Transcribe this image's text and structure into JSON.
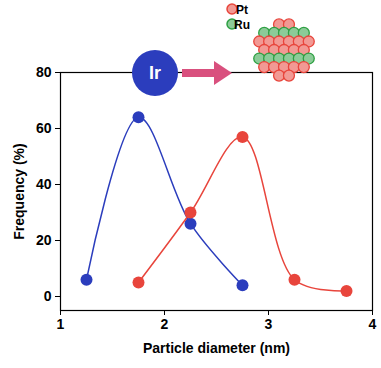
{
  "chart_data": {
    "type": "line",
    "xlabel": "Particle diameter (nm)",
    "ylabel": "Frequency (%)",
    "xlim": [
      1,
      4
    ],
    "xticks": [
      1,
      2,
      3,
      4
    ],
    "ylim": [
      -5,
      80
    ],
    "yticks": [
      0,
      20,
      40,
      60,
      80
    ],
    "grid": false,
    "marker": "circle",
    "series": [
      {
        "color": "#2b3dbd",
        "x": [
          1.25,
          1.75,
          2.25,
          2.75
        ],
        "values": [
          6,
          64,
          26,
          4
        ]
      },
      {
        "color": "#e8453c",
        "x": [
          1.75,
          2.25,
          2.75,
          3.25,
          3.75
        ],
        "values": [
          5,
          30,
          57,
          6,
          2
        ]
      }
    ],
    "annotations": [
      {
        "text": "Ir",
        "color": "#2b3dbd"
      },
      {
        "text": "Pt",
        "color": "#e8453c"
      },
      {
        "text": "Ru",
        "color": "#2ea043"
      }
    ]
  }
}
